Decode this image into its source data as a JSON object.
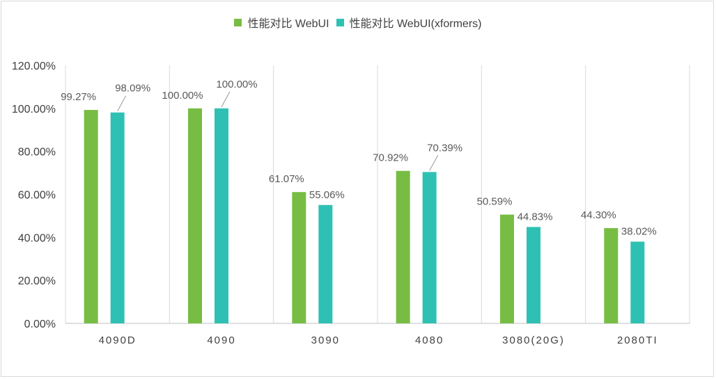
{
  "chart_data": {
    "type": "bar",
    "categories": [
      "4090D",
      "4090",
      "3090",
      "4080",
      "3080(20G)",
      "2080TI"
    ],
    "series": [
      {
        "name": "性能对比 WebUI",
        "color": "#77bd43",
        "values": [
          99.27,
          100.0,
          61.07,
          70.92,
          50.59,
          44.3
        ],
        "labels": [
          "99.27%",
          "100.00%",
          "61.07%",
          "70.92%",
          "50.59%",
          "44.30%"
        ]
      },
      {
        "name": "性能对比 WebUI(xformers)",
        "color": "#2ec1b3",
        "values": [
          98.09,
          100.0,
          55.06,
          70.39,
          44.83,
          38.02
        ],
        "labels": [
          "98.09%",
          "100.00%",
          "55.06%",
          "70.39%",
          "44.83%",
          "38.02%"
        ]
      }
    ],
    "yticks": [
      "0.00%",
      "20.00%",
      "40.00%",
      "60.00%",
      "80.00%",
      "100.00%",
      "120.00%"
    ],
    "ylim": [
      0,
      120
    ],
    "legend_position": "top-center",
    "grid": "vertical-category-separators"
  }
}
